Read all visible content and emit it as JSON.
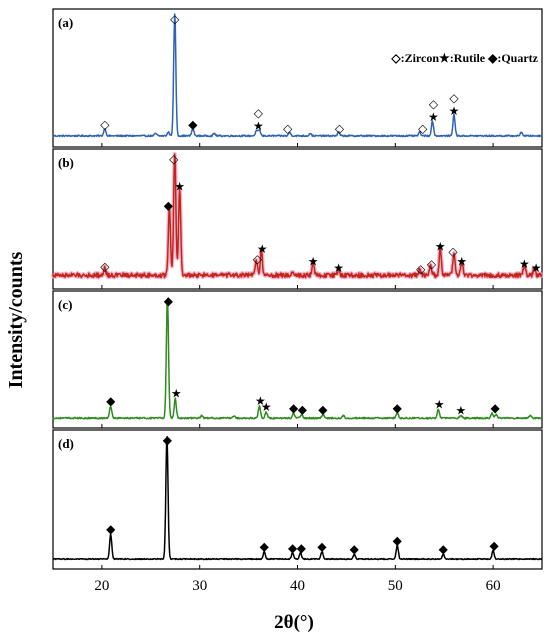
{
  "chart_data": {
    "type": "line",
    "xlabel": "2θ(°)",
    "ylabel": "Intensity/counts",
    "xlim": [
      15,
      65
    ],
    "xticks": [
      20,
      30,
      40,
      50,
      60
    ],
    "grid": false,
    "legend": {
      "text": "◇:Zircon★:Rutile ◆:Quartz",
      "placement": "top-right of panel (a)"
    },
    "symbols": {
      "Zircon": "◇",
      "Rutile": "★",
      "Quartz": "◆"
    },
    "panels": [
      {
        "label": "(a)",
        "color": "#2f63b4",
        "baseline": 0.05,
        "noise": 0.006,
        "peaks": [
          [
            20.3,
            0.06
          ],
          [
            25.5,
            0.02
          ],
          [
            26.8,
            0.03
          ],
          [
            27.45,
            1.0
          ],
          [
            29.3,
            0.06
          ],
          [
            31.5,
            0.02
          ],
          [
            35.8,
            0.04
          ],
          [
            36.1,
            0.05
          ],
          [
            39.2,
            0.03
          ],
          [
            41.3,
            0.02
          ],
          [
            44.2,
            0.03
          ],
          [
            52.5,
            0.03
          ],
          [
            53.8,
            0.12
          ],
          [
            56.0,
            0.17
          ],
          [
            62.9,
            0.03
          ]
        ],
        "markers": [
          {
            "x": 20.3,
            "y": 0.06,
            "symbols": [
              "◇"
            ]
          },
          {
            "x": 27.45,
            "y": 1.0,
            "symbols": [
              "◇"
            ]
          },
          {
            "x": 29.3,
            "y": 0.06,
            "symbols": [
              "◆"
            ]
          },
          {
            "x": 36.0,
            "y": 0.05,
            "symbols": [
              "★",
              "◇"
            ]
          },
          {
            "x": 39.0,
            "y": 0.03,
            "symbols": [
              "◇"
            ]
          },
          {
            "x": 44.3,
            "y": 0.03,
            "symbols": [
              "◇"
            ]
          },
          {
            "x": 52.8,
            "y": 0.03,
            "symbols": [
              "◇"
            ]
          },
          {
            "x": 53.9,
            "y": 0.12,
            "symbols": [
              "★",
              "◇"
            ]
          },
          {
            "x": 56.0,
            "y": 0.17,
            "symbols": [
              "★",
              "◇"
            ]
          }
        ]
      },
      {
        "label": "(b)",
        "color": "#c0271c",
        "baseline": 0.07,
        "noise": 0.018,
        "peaks": [
          [
            20.3,
            0.06
          ],
          [
            26.9,
            0.55
          ],
          [
            27.45,
            1.0
          ],
          [
            27.95,
            0.7
          ],
          [
            35.8,
            0.12
          ],
          [
            36.3,
            0.2
          ],
          [
            39.5,
            0.03
          ],
          [
            41.6,
            0.1
          ],
          [
            44.2,
            0.05
          ],
          [
            52.5,
            0.04
          ],
          [
            53.6,
            0.08
          ],
          [
            54.6,
            0.22
          ],
          [
            56.0,
            0.18
          ],
          [
            56.8,
            0.1
          ],
          [
            63.2,
            0.08
          ],
          [
            64.2,
            0.05
          ]
        ],
        "markers": [
          {
            "x": 20.3,
            "y": 0.06,
            "symbols": [
              "◇"
            ]
          },
          {
            "x": 26.8,
            "y": 0.55,
            "symbols": [
              "◆"
            ]
          },
          {
            "x": 27.35,
            "y": 1.0,
            "symbols": [
              "◇"
            ]
          },
          {
            "x": 27.95,
            "y": 0.7,
            "symbols": [
              "★"
            ]
          },
          {
            "x": 35.9,
            "y": 0.12,
            "symbols": [
              "◇"
            ]
          },
          {
            "x": 36.4,
            "y": 0.2,
            "symbols": [
              "★"
            ]
          },
          {
            "x": 41.6,
            "y": 0.1,
            "symbols": [
              "★"
            ]
          },
          {
            "x": 44.2,
            "y": 0.05,
            "symbols": [
              "★"
            ]
          },
          {
            "x": 52.6,
            "y": 0.04,
            "symbols": [
              "◇"
            ]
          },
          {
            "x": 53.7,
            "y": 0.08,
            "symbols": [
              "◇"
            ]
          },
          {
            "x": 54.6,
            "y": 0.22,
            "symbols": [
              "★"
            ]
          },
          {
            "x": 55.9,
            "y": 0.18,
            "symbols": [
              "◇"
            ]
          },
          {
            "x": 56.8,
            "y": 0.1,
            "symbols": [
              "★"
            ]
          },
          {
            "x": 63.2,
            "y": 0.08,
            "symbols": [
              "★"
            ]
          },
          {
            "x": 64.4,
            "y": 0.05,
            "symbols": [
              "★"
            ]
          }
        ]
      },
      {
        "label": "(c)",
        "color": "#2e8b1e",
        "baseline": 0.04,
        "noise": 0.006,
        "peaks": [
          [
            20.9,
            0.1
          ],
          [
            26.7,
            1.0
          ],
          [
            27.5,
            0.16
          ],
          [
            30.2,
            0.02
          ],
          [
            33.5,
            0.02
          ],
          [
            36.1,
            0.1
          ],
          [
            36.8,
            0.05
          ],
          [
            39.6,
            0.04
          ],
          [
            40.4,
            0.03
          ],
          [
            42.6,
            0.03
          ],
          [
            44.7,
            0.02
          ],
          [
            50.2,
            0.04
          ],
          [
            54.4,
            0.07
          ],
          [
            56.7,
            0.02
          ],
          [
            59.9,
            0.04
          ],
          [
            60.3,
            0.03
          ],
          [
            63.8,
            0.02
          ]
        ],
        "markers": [
          {
            "x": 20.9,
            "y": 0.1,
            "symbols": [
              "◆"
            ]
          },
          {
            "x": 26.8,
            "y": 1.0,
            "symbols": [
              "◆"
            ]
          },
          {
            "x": 27.6,
            "y": 0.16,
            "symbols": [
              "★"
            ]
          },
          {
            "x": 36.2,
            "y": 0.1,
            "symbols": [
              "★"
            ]
          },
          {
            "x": 36.8,
            "y": 0.05,
            "symbols": [
              "★"
            ]
          },
          {
            "x": 39.6,
            "y": 0.04,
            "symbols": [
              "◆"
            ]
          },
          {
            "x": 40.5,
            "y": 0.03,
            "symbols": [
              "◆"
            ]
          },
          {
            "x": 42.6,
            "y": 0.03,
            "symbols": [
              "◆"
            ]
          },
          {
            "x": 50.2,
            "y": 0.04,
            "symbols": [
              "◆"
            ]
          },
          {
            "x": 54.5,
            "y": 0.07,
            "symbols": [
              "★"
            ]
          },
          {
            "x": 56.7,
            "y": 0.02,
            "symbols": [
              "★"
            ]
          },
          {
            "x": 60.2,
            "y": 0.04,
            "symbols": [
              "◆"
            ]
          }
        ]
      },
      {
        "label": "(d)",
        "color": "#000000",
        "baseline": 0.04,
        "noise": 0.004,
        "peaks": [
          [
            20.9,
            0.2
          ],
          [
            26.65,
            1.0
          ],
          [
            36.6,
            0.06
          ],
          [
            39.5,
            0.05
          ],
          [
            40.3,
            0.05
          ],
          [
            42.5,
            0.06
          ],
          [
            45.8,
            0.04
          ],
          [
            50.2,
            0.11
          ],
          [
            54.9,
            0.04
          ],
          [
            60.0,
            0.07
          ]
        ],
        "markers": [
          {
            "x": 20.9,
            "y": 0.2,
            "symbols": [
              "◆"
            ]
          },
          {
            "x": 26.7,
            "y": 1.0,
            "symbols": [
              "◆"
            ]
          },
          {
            "x": 36.6,
            "y": 0.06,
            "symbols": [
              "◆"
            ]
          },
          {
            "x": 39.5,
            "y": 0.05,
            "symbols": [
              "◆"
            ]
          },
          {
            "x": 40.4,
            "y": 0.05,
            "symbols": [
              "◆"
            ]
          },
          {
            "x": 42.5,
            "y": 0.06,
            "symbols": [
              "◆"
            ]
          },
          {
            "x": 45.8,
            "y": 0.04,
            "symbols": [
              "◆"
            ]
          },
          {
            "x": 50.2,
            "y": 0.11,
            "symbols": [
              "◆"
            ]
          },
          {
            "x": 54.9,
            "y": 0.04,
            "symbols": [
              "◆"
            ]
          },
          {
            "x": 60.1,
            "y": 0.07,
            "symbols": [
              "◆"
            ]
          }
        ]
      }
    ]
  }
}
